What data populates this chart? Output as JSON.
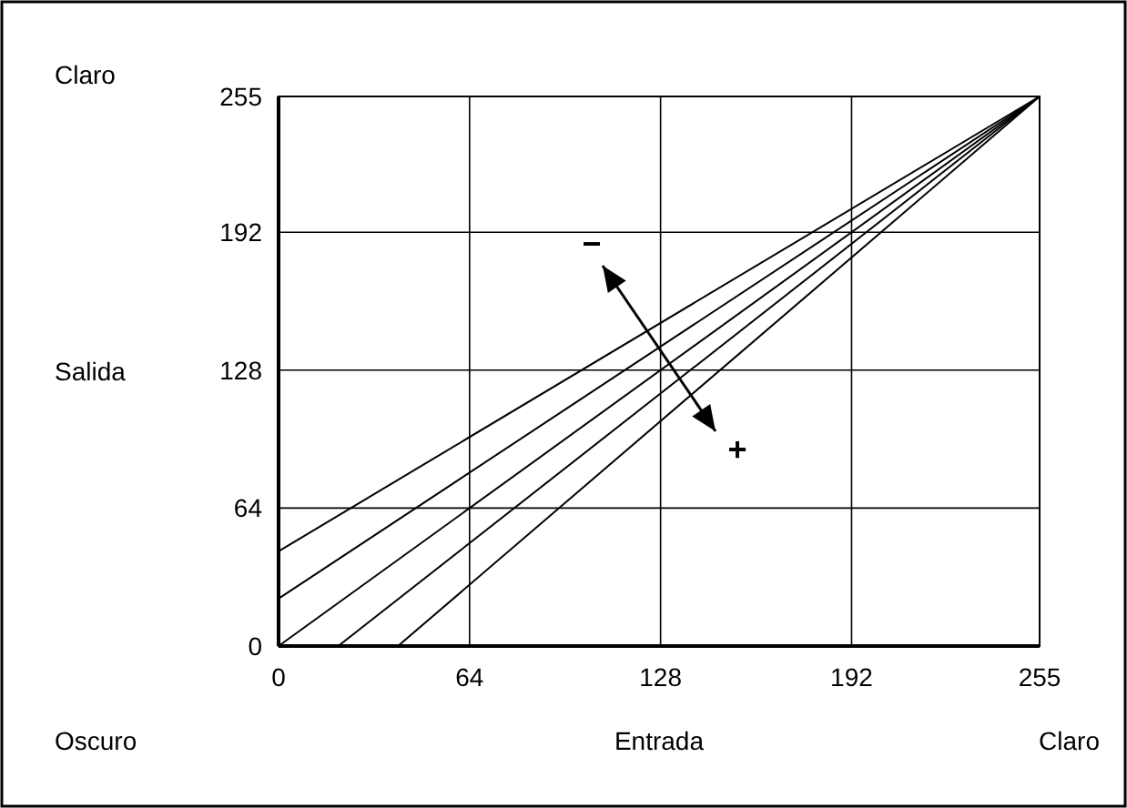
{
  "chart_data": {
    "type": "line",
    "xlabel": "Entrada",
    "ylabel": "Salida",
    "xlim": [
      0,
      255
    ],
    "ylim": [
      0,
      255
    ],
    "xticks": [
      0,
      64,
      128,
      192,
      255
    ],
    "yticks": [
      0,
      64,
      128,
      192,
      255
    ],
    "grid": true,
    "marker": "none",
    "line_style": "solid",
    "series": [
      {
        "color": "#000000",
        "x": [
          0,
          255
        ],
        "values": [
          44,
          255
        ]
      },
      {
        "color": "#000000",
        "x": [
          0,
          255
        ],
        "values": [
          22,
          255
        ]
      },
      {
        "color": "#000000",
        "x": [
          0,
          255
        ],
        "values": [
          0,
          255
        ]
      },
      {
        "color": "#000000",
        "x": [
          20,
          255
        ],
        "values": [
          0,
          255
        ]
      },
      {
        "color": "#000000",
        "x": [
          40,
          255
        ],
        "values": [
          0,
          255
        ]
      }
    ],
    "annotations": [
      "Claro",
      "Oscuro",
      "Claro",
      "−",
      "+"
    ]
  }
}
